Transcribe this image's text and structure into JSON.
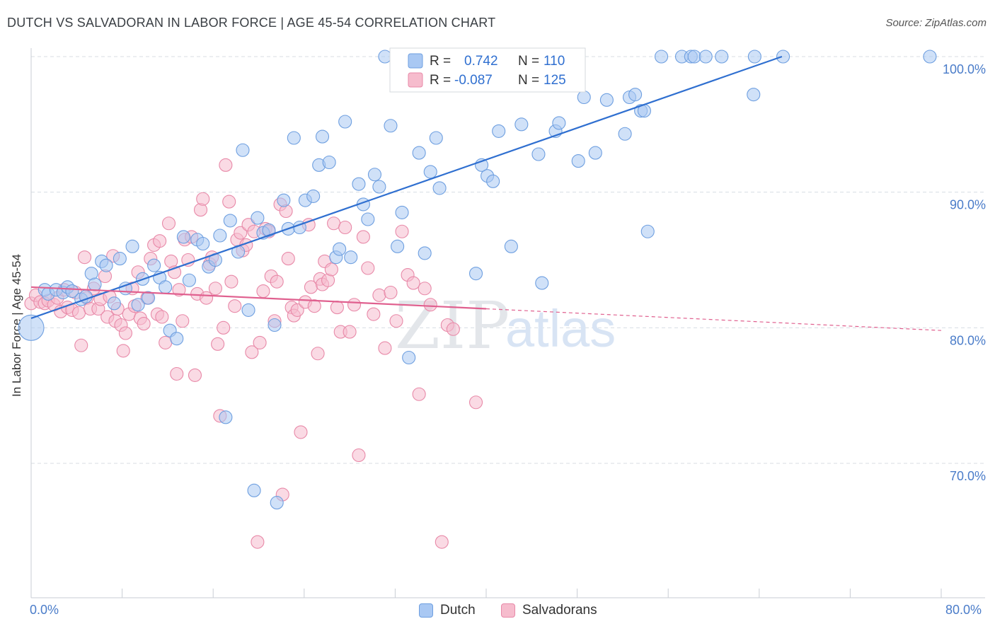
{
  "title": "DUTCH VS SALVADORAN IN LABOR FORCE | AGE 45-54 CORRELATION CHART",
  "source": "Source: ZipAtlas.com",
  "watermark": {
    "zip": "ZIP",
    "atlas": "atlas"
  },
  "colors": {
    "dutch_fill": "#a9c8f3",
    "dutch_stroke": "#6e9fe0",
    "dutch_line": "#2f6fd0",
    "salv_fill": "#f6bccd",
    "salv_stroke": "#e889a8",
    "salv_line": "#e0608f",
    "axis_text": "#4a7cc9",
    "grid": "#d8dde3"
  },
  "legend": {
    "rows": [
      {
        "r_label": "R =",
        "r_value": "0.742",
        "n_label": "N =",
        "n_value": "110"
      },
      {
        "r_label": "R =",
        "r_value": "-0.087",
        "n_label": "N =",
        "n_value": "125"
      }
    ]
  },
  "bottom_legend": {
    "dutch": "Dutch",
    "salvadorans": "Salvadorans"
  },
  "chart_data": {
    "type": "scatter",
    "title": "DUTCH VS SALVADORAN IN LABOR FORCE | AGE 45-54 CORRELATION CHART",
    "xlabel": "",
    "ylabel": "In Labor Force | Age 45-54",
    "xlim": [
      0,
      80
    ],
    "ylim": [
      62,
      101.5
    ],
    "x_tick_labels": [
      "0.0%",
      "80.0%"
    ],
    "y_ticks": [
      70,
      80,
      90,
      100
    ],
    "y_tick_labels": [
      "70.0%",
      "80.0%",
      "90.0%",
      "100.0%"
    ],
    "grid": "horizontal dashed",
    "legend_position": "top-center",
    "series": [
      {
        "name": "Dutch",
        "r": 0.742,
        "n": 110,
        "trend": {
          "x": [
            0,
            66
          ],
          "y": [
            80.7,
            100.0
          ]
        },
        "points": [
          [
            0,
            80
          ],
          [
            1.2,
            82.8
          ],
          [
            1.5,
            82.5
          ],
          [
            2.2,
            82.8
          ],
          [
            2.8,
            82.6
          ],
          [
            3.2,
            83
          ],
          [
            3.6,
            82.7
          ],
          [
            4.4,
            82.1
          ],
          [
            4.8,
            82.3
          ],
          [
            5.3,
            84
          ],
          [
            5.6,
            83.2
          ],
          [
            6.2,
            84.9
          ],
          [
            6.6,
            84.6
          ],
          [
            7.3,
            81.8
          ],
          [
            7.8,
            85.1
          ],
          [
            8.3,
            82.9
          ],
          [
            8.9,
            86
          ],
          [
            9.4,
            81.7
          ],
          [
            9.8,
            83.6
          ],
          [
            10.3,
            82.2
          ],
          [
            10.8,
            84.6
          ],
          [
            11.3,
            83.7
          ],
          [
            11.8,
            83
          ],
          [
            12.2,
            79.8
          ],
          [
            12.8,
            79.2
          ],
          [
            13.4,
            86.7
          ],
          [
            13.9,
            83.5
          ],
          [
            14.6,
            86.5
          ],
          [
            15.1,
            86.2
          ],
          [
            15.6,
            84.5
          ],
          [
            16.2,
            85
          ],
          [
            16.6,
            86.8
          ],
          [
            17.1,
            73.4
          ],
          [
            17.5,
            87.9
          ],
          [
            18.2,
            85.6
          ],
          [
            18.6,
            93.1
          ],
          [
            19.1,
            81.3
          ],
          [
            19.6,
            68
          ],
          [
            19.9,
            88.1
          ],
          [
            20.4,
            87
          ],
          [
            20.9,
            87.2
          ],
          [
            21.4,
            80.2
          ],
          [
            21.6,
            67.1
          ],
          [
            22.2,
            89.4
          ],
          [
            22.6,
            87.3
          ],
          [
            23.1,
            94
          ],
          [
            23.6,
            87.4
          ],
          [
            24.1,
            89.4
          ],
          [
            24.8,
            89.7
          ],
          [
            25.3,
            92
          ],
          [
            25.6,
            94.1
          ],
          [
            26.2,
            92.2
          ],
          [
            26.8,
            85.2
          ],
          [
            27.1,
            85.8
          ],
          [
            27.6,
            95.2
          ],
          [
            28.1,
            85.2
          ],
          [
            28.8,
            90.6
          ],
          [
            29.2,
            89.1
          ],
          [
            29.6,
            88
          ],
          [
            30.2,
            91.3
          ],
          [
            30.6,
            90.4
          ],
          [
            31.1,
            100
          ],
          [
            31.6,
            94.9
          ],
          [
            32.2,
            86
          ],
          [
            32.6,
            88.5
          ],
          [
            33.2,
            77.8
          ],
          [
            34.1,
            92.9
          ],
          [
            34.6,
            85.5
          ],
          [
            35.1,
            91.5
          ],
          [
            35.6,
            94
          ],
          [
            35.9,
            90.3
          ],
          [
            37,
            100
          ],
          [
            38,
            100
          ],
          [
            39.1,
            84
          ],
          [
            39.6,
            92
          ],
          [
            40.1,
            91.2
          ],
          [
            40.6,
            90.8
          ],
          [
            41.1,
            94.5
          ],
          [
            42.2,
            86
          ],
          [
            43.1,
            95
          ],
          [
            44.6,
            92.8
          ],
          [
            44.9,
            83.3
          ],
          [
            46.1,
            94.5
          ],
          [
            46.4,
            95.1
          ],
          [
            47.6,
            99.2
          ],
          [
            48.1,
            92.3
          ],
          [
            48.6,
            97
          ],
          [
            49.6,
            92.9
          ],
          [
            50.6,
            96.8
          ],
          [
            52.2,
            94.3
          ],
          [
            52.6,
            97
          ],
          [
            53.1,
            97.2
          ],
          [
            53.6,
            96
          ],
          [
            53.9,
            96
          ],
          [
            54.2,
            87.1
          ],
          [
            55.4,
            100
          ],
          [
            57.2,
            100
          ],
          [
            58,
            100
          ],
          [
            58.3,
            100
          ],
          [
            59.3,
            100
          ],
          [
            60.7,
            100
          ],
          [
            63.5,
            97.2
          ],
          [
            63.6,
            100
          ],
          [
            66.1,
            100
          ],
          [
            79,
            100
          ]
        ]
      },
      {
        "name": "Salvadorans",
        "r": -0.087,
        "n": 125,
        "trend": {
          "x": [
            0,
            40
          ],
          "y": [
            83.0,
            81.4
          ]
        },
        "trend_extension": {
          "x": [
            40,
            80
          ],
          "y": [
            81.4,
            79.8
          ]
        },
        "points": [
          [
            0,
            81.8
          ],
          [
            0.4,
            82.4
          ],
          [
            0.8,
            81.9
          ],
          [
            1.2,
            81.8
          ],
          [
            1.5,
            82
          ],
          [
            2,
            81.7
          ],
          [
            2.3,
            82.2
          ],
          [
            2.6,
            81.2
          ],
          [
            2.9,
            82.8
          ],
          [
            3.2,
            81.5
          ],
          [
            3.6,
            81.3
          ],
          [
            3.9,
            82.6
          ],
          [
            4.2,
            81.1
          ],
          [
            4.4,
            78.7
          ],
          [
            4.7,
            85.2
          ],
          [
            4.9,
            82.2
          ],
          [
            5.2,
            81.4
          ],
          [
            5.5,
            82.9
          ],
          [
            5.9,
            81.4
          ],
          [
            6.1,
            82.1
          ],
          [
            6.5,
            83.8
          ],
          [
            6.7,
            80.8
          ],
          [
            6.9,
            82.3
          ],
          [
            7.2,
            85.3
          ],
          [
            7.4,
            80.5
          ],
          [
            7.6,
            81.4
          ],
          [
            7.9,
            80.2
          ],
          [
            8.1,
            78.3
          ],
          [
            8.3,
            79.6
          ],
          [
            8.6,
            81
          ],
          [
            8.9,
            82.9
          ],
          [
            9.1,
            81.6
          ],
          [
            9.4,
            84.1
          ],
          [
            9.6,
            80.7
          ],
          [
            9.9,
            80.3
          ],
          [
            10.2,
            82.2
          ],
          [
            10.5,
            85.1
          ],
          [
            10.8,
            86.1
          ],
          [
            11.1,
            81
          ],
          [
            11.3,
            86.4
          ],
          [
            11.5,
            80.8
          ],
          [
            11.8,
            78.9
          ],
          [
            12.1,
            87.7
          ],
          [
            12.3,
            84.9
          ],
          [
            12.6,
            84.1
          ],
          [
            12.8,
            76.6
          ],
          [
            13,
            82.8
          ],
          [
            13.3,
            80.5
          ],
          [
            13.5,
            86.5
          ],
          [
            13.8,
            85
          ],
          [
            14.1,
            86.7
          ],
          [
            14.4,
            76.5
          ],
          [
            14.6,
            82.5
          ],
          [
            14.9,
            88.7
          ],
          [
            15.1,
            89.5
          ],
          [
            15.4,
            82.2
          ],
          [
            15.7,
            84.7
          ],
          [
            15.9,
            85.2
          ],
          [
            16.2,
            82.9
          ],
          [
            16.4,
            78.8
          ],
          [
            16.6,
            73.5
          ],
          [
            16.9,
            80
          ],
          [
            17.1,
            92
          ],
          [
            17.4,
            89.3
          ],
          [
            17.6,
            83.4
          ],
          [
            17.9,
            81.6
          ],
          [
            18.1,
            86.5
          ],
          [
            18.4,
            87
          ],
          [
            18.6,
            85.7
          ],
          [
            18.9,
            86.1
          ],
          [
            19.1,
            87.6
          ],
          [
            19.4,
            78.2
          ],
          [
            19.6,
            87.1
          ],
          [
            19.9,
            64.2
          ],
          [
            20.1,
            78.9
          ],
          [
            20.4,
            82.7
          ],
          [
            20.6,
            87.3
          ],
          [
            20.9,
            87.1
          ],
          [
            21.1,
            83.8
          ],
          [
            21.4,
            80.5
          ],
          [
            21.6,
            83.4
          ],
          [
            21.9,
            89.1
          ],
          [
            22.1,
            67.7
          ],
          [
            22.4,
            88.6
          ],
          [
            22.6,
            85.1
          ],
          [
            22.9,
            81.5
          ],
          [
            23.1,
            80.9
          ],
          [
            23.4,
            81.3
          ],
          [
            23.7,
            72.3
          ],
          [
            24.1,
            81.9
          ],
          [
            24.4,
            87.6
          ],
          [
            24.6,
            83
          ],
          [
            24.9,
            81.6
          ],
          [
            25.2,
            78.1
          ],
          [
            25.4,
            83.6
          ],
          [
            25.6,
            83.2
          ],
          [
            25.8,
            84.9
          ],
          [
            26.1,
            83.5
          ],
          [
            26.4,
            84.3
          ],
          [
            26.6,
            87.7
          ],
          [
            26.9,
            81.5
          ],
          [
            27.2,
            79.7
          ],
          [
            27.6,
            87.4
          ],
          [
            28,
            79.7
          ],
          [
            28.4,
            81.7
          ],
          [
            28.8,
            70.6
          ],
          [
            29.2,
            86.7
          ],
          [
            29.6,
            84.4
          ],
          [
            30.1,
            81
          ],
          [
            30.6,
            82.4
          ],
          [
            31.1,
            78.5
          ],
          [
            31.6,
            82.6
          ],
          [
            32.1,
            80.5
          ],
          [
            32.6,
            87.1
          ],
          [
            33.1,
            83.9
          ],
          [
            33.6,
            83.3
          ],
          [
            34.1,
            75.1
          ],
          [
            34.6,
            82.9
          ],
          [
            35.1,
            81.7
          ],
          [
            36.1,
            64.2
          ],
          [
            36.6,
            80.2
          ],
          [
            37.1,
            79.9
          ],
          [
            39.1,
            74.5
          ]
        ]
      }
    ]
  }
}
